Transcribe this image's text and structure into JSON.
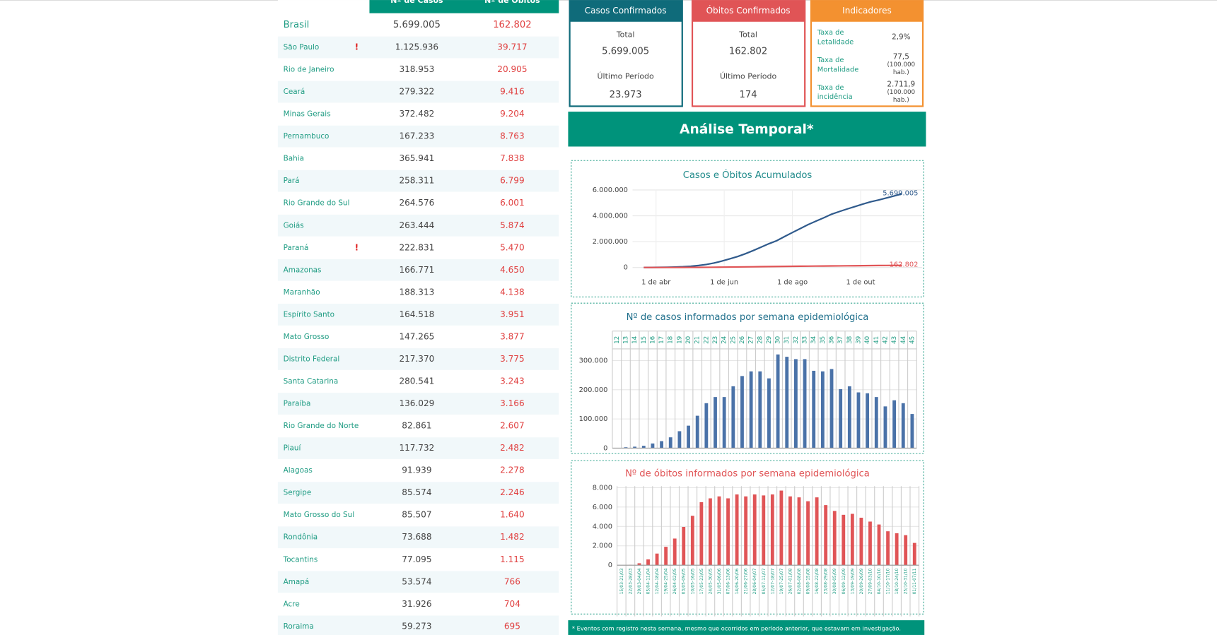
{
  "table": {
    "headers": [
      "Nº de Casos",
      "Nº de Óbitos"
    ],
    "total": {
      "name": "Brasil",
      "cases": "5.699.005",
      "deaths": "162.802"
    },
    "rows": [
      {
        "name": "São Paulo",
        "cases": "1.125.936",
        "deaths": "39.717",
        "flag": "!"
      },
      {
        "name": "Rio de Janeiro",
        "cases": "318.953",
        "deaths": "20.905"
      },
      {
        "name": "Ceará",
        "cases": "279.322",
        "deaths": "9.416"
      },
      {
        "name": "Minas Gerais",
        "cases": "372.482",
        "deaths": "9.204"
      },
      {
        "name": "Pernambuco",
        "cases": "167.233",
        "deaths": "8.763"
      },
      {
        "name": "Bahia",
        "cases": "365.941",
        "deaths": "7.838"
      },
      {
        "name": "Pará",
        "cases": "258.311",
        "deaths": "6.799"
      },
      {
        "name": "Rio Grande do Sul",
        "cases": "264.576",
        "deaths": "6.001"
      },
      {
        "name": "Goiás",
        "cases": "263.444",
        "deaths": "5.874"
      },
      {
        "name": "Paraná",
        "cases": "222.831",
        "deaths": "5.470",
        "flag": "!"
      },
      {
        "name": "Amazonas",
        "cases": "166.771",
        "deaths": "4.650"
      },
      {
        "name": "Maranhão",
        "cases": "188.313",
        "deaths": "4.138"
      },
      {
        "name": "Espírito Santo",
        "cases": "164.518",
        "deaths": "3.951"
      },
      {
        "name": "Mato Grosso",
        "cases": "147.265",
        "deaths": "3.877"
      },
      {
        "name": "Distrito Federal",
        "cases": "217.370",
        "deaths": "3.775"
      },
      {
        "name": "Santa Catarina",
        "cases": "280.541",
        "deaths": "3.243"
      },
      {
        "name": "Paraíba",
        "cases": "136.029",
        "deaths": "3.166"
      },
      {
        "name": "Rio Grande do Norte",
        "cases": "82.861",
        "deaths": "2.607"
      },
      {
        "name": "Piauí",
        "cases": "117.732",
        "deaths": "2.482"
      },
      {
        "name": "Alagoas",
        "cases": "91.939",
        "deaths": "2.278"
      },
      {
        "name": "Sergipe",
        "cases": "85.574",
        "deaths": "2.246"
      },
      {
        "name": "Mato Grosso do Sul",
        "cases": "85.507",
        "deaths": "1.640"
      },
      {
        "name": "Rondônia",
        "cases": "73.688",
        "deaths": "1.482"
      },
      {
        "name": "Tocantins",
        "cases": "77.095",
        "deaths": "1.115"
      },
      {
        "name": "Amapá",
        "cases": "53.574",
        "deaths": "766"
      },
      {
        "name": "Acre",
        "cases": "31.926",
        "deaths": "704"
      },
      {
        "name": "Roraima",
        "cases": "59.273",
        "deaths": "695"
      }
    ]
  },
  "cards": [
    {
      "title": "Casos Confirmados",
      "color": "#0f6b7a",
      "items": [
        {
          "label": "Total",
          "value": "5.699.005"
        },
        {
          "label": "Último Período",
          "value": "23.973"
        }
      ]
    },
    {
      "title": "Óbitos Confirmados",
      "color": "#e05456",
      "items": [
        {
          "label": "Total",
          "value": "162.802"
        },
        {
          "label": "Último Período",
          "value": "174"
        }
      ]
    }
  ],
  "indicators": {
    "title": "Indicadores",
    "color": "#f39130",
    "items": [
      {
        "label": [
          "Taxa de",
          "Letalidade"
        ],
        "value": [
          "2,9%"
        ]
      },
      {
        "label": [
          "Taxa de",
          "Mortalidade"
        ],
        "value": [
          "77,5",
          "(100.000",
          "hab.)"
        ]
      },
      {
        "label": [
          "Taxa de",
          "incidência"
        ],
        "value": [
          "2.711,9",
          "(100.000",
          "hab.)"
        ]
      }
    ]
  },
  "section_title": "Análise Temporal*",
  "chart_data": [
    {
      "type": "line",
      "title": "Casos e Óbitos Acumulados",
      "x": [
        "21/03",
        "28/03",
        "04/04",
        "11/04",
        "18/04",
        "25/04",
        "02/05",
        "09/05",
        "16/05",
        "23/05",
        "30/05",
        "06/06",
        "13/06",
        "20/06",
        "27/06",
        "04/07",
        "11/07",
        "18/07",
        "25/07",
        "01/08",
        "08/08",
        "15/08",
        "22/08",
        "29/08",
        "05/09",
        "12/09",
        "19/09",
        "26/09",
        "03/10",
        "10/10",
        "17/10",
        "24/10",
        "31/10",
        "07/11"
      ],
      "series": [
        {
          "name": "Casos",
          "color": "#2f5a8c",
          "end_label": "5.699.005",
          "values": [
            1000,
            4000,
            11000,
            20000,
            36000,
            59000,
            96000,
            155000,
            233000,
            347000,
            498000,
            672000,
            850000,
            1067000,
            1313000,
            1577000,
            1840000,
            2075000,
            2395000,
            2707000,
            3013000,
            3317000,
            3582000,
            3846000,
            4123000,
            4330000,
            4528000,
            4718000,
            4906000,
            5082000,
            5224000,
            5380000,
            5535000,
            5699005
          ]
        },
        {
          "name": "Óbitos",
          "color": "#e05456",
          "end_label": "162.802",
          "values": [
            11,
            114,
            432,
            1223,
            2462,
            4016,
            7321,
            10627,
            15633,
            22013,
            28834,
            35930,
            42720,
            49976,
            57070,
            64265,
            71469,
            78772,
            86449,
            92475,
            98493,
            104201,
            109888,
            115309,
            120896,
            125502,
            131210,
            135793,
            140952,
            146675,
            153214,
            156903,
            160074,
            162802
          ]
        }
      ],
      "xlim": [
        "11/03",
        "25/11"
      ],
      "xticks": [
        {
          "value": "01/04",
          "label": "1 de abr"
        },
        {
          "value": "01/06",
          "label": "1 de jun"
        },
        {
          "value": "01/08",
          "label": "1 de ago"
        },
        {
          "value": "01/10",
          "label": "1 de out"
        }
      ],
      "ylim": [
        0,
        6000000
      ],
      "yticks": [
        0,
        {
          "value": 2000000,
          "label": "2.000.000"
        },
        {
          "value": 4000000,
          "label": "4.000.000"
        },
        {
          "value": 6000000,
          "label": "6.000.000"
        }
      ],
      "grid": true
    },
    {
      "type": "bar",
      "title": "Nº de casos informados por semana epidemiológica",
      "color": "#4a72a8",
      "categories": [
        "12",
        "13",
        "14",
        "15",
        "16",
        "17",
        "18",
        "19",
        "20",
        "21",
        "22",
        "23",
        "24",
        "25",
        "26",
        "27",
        "28",
        "29",
        "30",
        "31",
        "32",
        "33",
        "34",
        "35",
        "36",
        "37",
        "38",
        "39",
        "40",
        "41",
        "42",
        "43",
        "44",
        "45"
      ],
      "values": [
        1000,
        3000,
        5000,
        8000,
        16000,
        24000,
        37000,
        58000,
        77000,
        111000,
        154000,
        175000,
        175000,
        212000,
        247000,
        263000,
        263000,
        239000,
        321000,
        313000,
        305000,
        305000,
        265000,
        263000,
        271000,
        202000,
        212000,
        191000,
        188000,
        175000,
        143000,
        164000,
        154000,
        117000
      ],
      "ylim": [
        0,
        340000
      ],
      "yticks": [
        0,
        {
          "value": 100000,
          "label": "100.000"
        },
        {
          "value": 200000,
          "label": "200.000"
        },
        {
          "value": 300000,
          "label": "300.000"
        }
      ],
      "grid": true
    },
    {
      "type": "bar",
      "title": "Nº de óbitos informados por semana epidemiológica",
      "color": "#e05456",
      "categories": [
        "15/03-21/03",
        "22/03-28/03",
        "29/03-04/04",
        "05/04-11/04",
        "12/04-18/04",
        "19/04-25/04",
        "26/04-02/05",
        "03/05-09/05",
        "10/05-16/05",
        "17/05-23/05",
        "24/05-30/05",
        "31/05-06/06",
        "07/06-13/06",
        "14/06-20/06",
        "21/06-27/06",
        "28/06-04/07",
        "05/07-11/07",
        "12/07-18/07",
        "19/07-25/07",
        "26/07-01/08",
        "02/08-08/08",
        "09/08-15/08",
        "16/08-22/08",
        "23/08-29/08",
        "30/08-05/09",
        "06/09-12/09",
        "13/09-19/09",
        "20/09-26/09",
        "27/09-03/10",
        "04/10-10/10",
        "11/10-17/10",
        "18/10-24/10",
        "25/10-31/10",
        "01/11-07/11"
      ],
      "values": [
        10,
        30,
        200,
        600,
        1200,
        1900,
        2750,
        3950,
        5100,
        6500,
        6900,
        7100,
        6900,
        7300,
        7100,
        7300,
        7200,
        7300,
        7700,
        7100,
        7000,
        6600,
        7000,
        6200,
        5600,
        5200,
        5300,
        4900,
        4500,
        4200,
        3500,
        3300,
        3100,
        2300
      ],
      "ylim": [
        0,
        8000
      ],
      "yticks": [
        0,
        {
          "value": 2000,
          "label": "2.000"
        },
        {
          "value": 4000,
          "label": "4.000"
        },
        {
          "value": 6000,
          "label": "6.000"
        },
        {
          "value": 8000,
          "label": "8.000"
        }
      ],
      "grid": true
    }
  ],
  "footnote": "* Eventos com registro nesta semana, mesmo que ocorridos em período anterior, que estavam em investigação."
}
